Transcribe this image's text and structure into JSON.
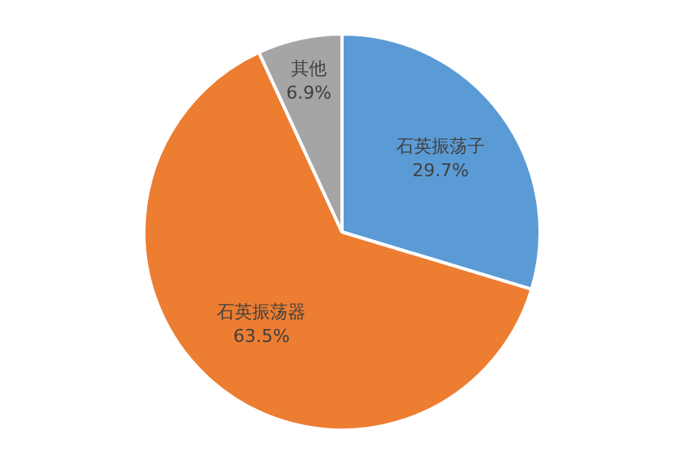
{
  "chart_data": {
    "type": "pie",
    "categories": [
      "石英振荡子",
      "石英振荡器",
      "其他"
    ],
    "values": [
      29.7,
      63.5,
      6.9
    ],
    "value_labels": [
      "29.7%",
      "63.5%",
      "6.9%"
    ],
    "colors": [
      "#5b9bd5",
      "#ed7d31",
      "#a5a5a5"
    ],
    "legend": false
  }
}
